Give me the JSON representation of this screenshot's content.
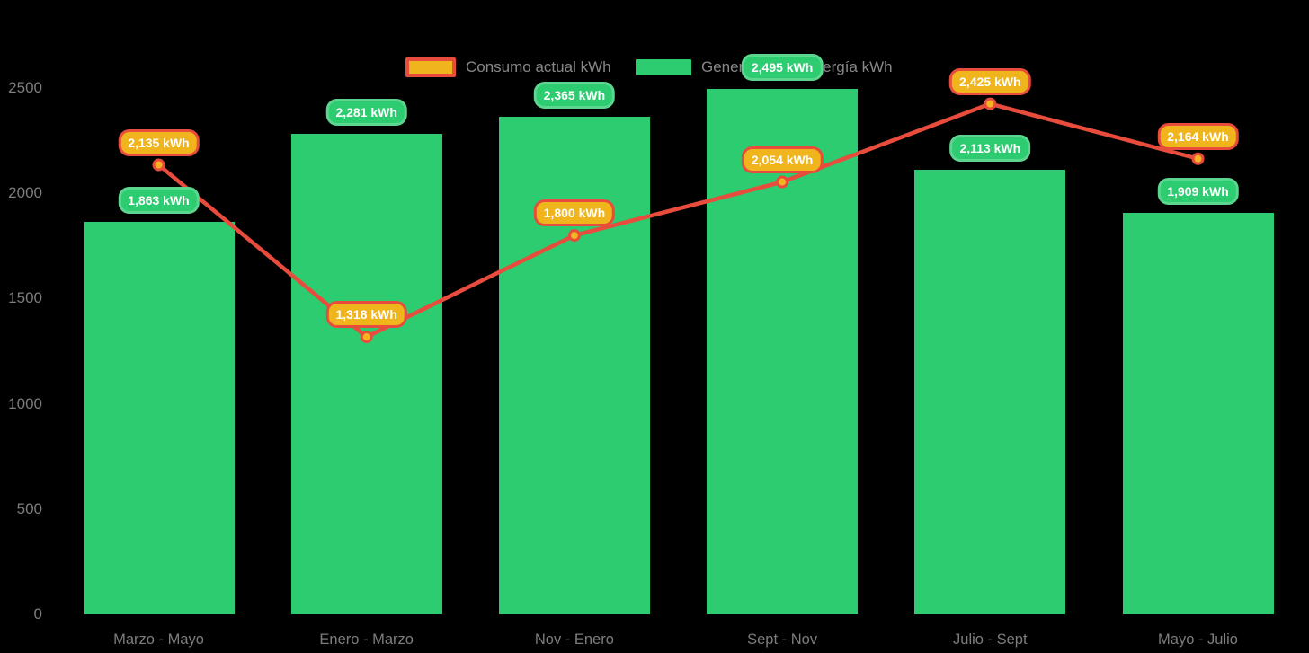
{
  "chart_data": {
    "type": "combo-bar-line",
    "title": "",
    "xlabel": "",
    "ylabel": "",
    "categories": [
      "Marzo - Mayo",
      "Enero - Marzo",
      "Nov - Enero",
      "Sept - Nov",
      "Julio - Sept",
      "Mayo - Julio"
    ],
    "series": [
      {
        "name": "Consumo actual kWh",
        "type": "line",
        "color": "#e74c3c",
        "marker_fill": "#f5b41f",
        "label_bg": "#f0b41c",
        "label_border": "#e74c3c",
        "values": [
          2135,
          1318,
          1800,
          2054,
          2425,
          2164
        ],
        "labels": [
          "2,135 kWh",
          "1,318 kWh",
          "1,800 kWh",
          "2,054 kWh",
          "2,425 kWh",
          "2,164 kWh"
        ]
      },
      {
        "name": "Generación de energía kWh",
        "type": "bar",
        "color": "#2ecc71",
        "label_bg": "#2ecc71",
        "label_border": "#5cd68f",
        "values": [
          1863,
          2281,
          2365,
          2495,
          2113,
          1909
        ],
        "labels": [
          "1,863 kWh",
          "2,281 kWh",
          "2,365 kWh",
          "2,495 kWh",
          "2,113 kWh",
          "1,909 kWh"
        ]
      }
    ],
    "yticks": [
      0,
      500,
      1000,
      1500,
      2000,
      2500
    ],
    "ylim": [
      0,
      2500
    ],
    "grid": false,
    "legend_position": "top",
    "axis_text_color": "#7d7d7d",
    "legend_text_color": "#878787",
    "background": "#000000"
  }
}
